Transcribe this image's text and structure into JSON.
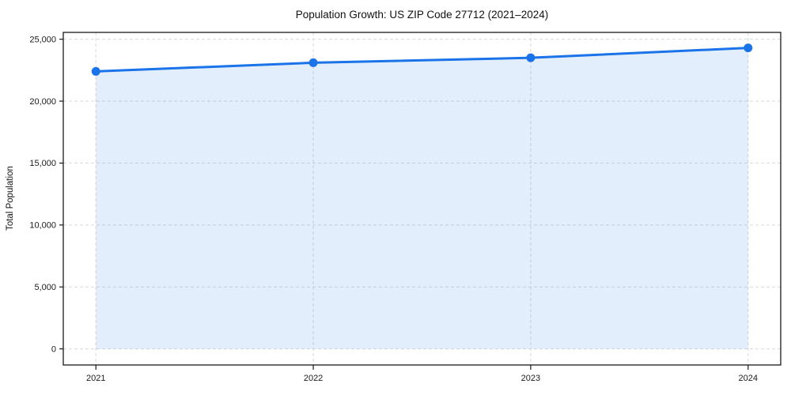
{
  "figure": {
    "background": "#ffffff"
  },
  "chart_data": {
    "type": "area",
    "title": "Population Growth: US ZIP Code 27712 (2021–2024)",
    "xlabel": "",
    "ylabel": "Total Population",
    "categories": [
      "2021",
      "2022",
      "2023",
      "2024"
    ],
    "x": [
      2021,
      2022,
      2023,
      2024
    ],
    "series": [
      {
        "name": "Total Population",
        "values": [
          22400,
          23100,
          23500,
          24300
        ]
      }
    ],
    "y_ticks": [
      0,
      5000,
      10000,
      15000,
      20000,
      25000
    ],
    "y_tick_labels": [
      "0",
      "5,000",
      "10,000",
      "15,000",
      "20,000",
      "25,000"
    ],
    "xlim": [
      2020.85,
      2024.15
    ],
    "ylim": [
      -1300,
      25550
    ],
    "grid": "dashed-both-axes",
    "legend": "none",
    "fill_baseline": 0,
    "colors": {
      "line": "#1a73e8",
      "marker": "#1a73e8",
      "fill": "rgba(26,115,232,0.12)",
      "grid": "#d9d9d9",
      "axis_border": "#1a1a1a",
      "tick_text": "#1a1a1a",
      "title_text": "#111111",
      "background": "#ffffff"
    }
  }
}
